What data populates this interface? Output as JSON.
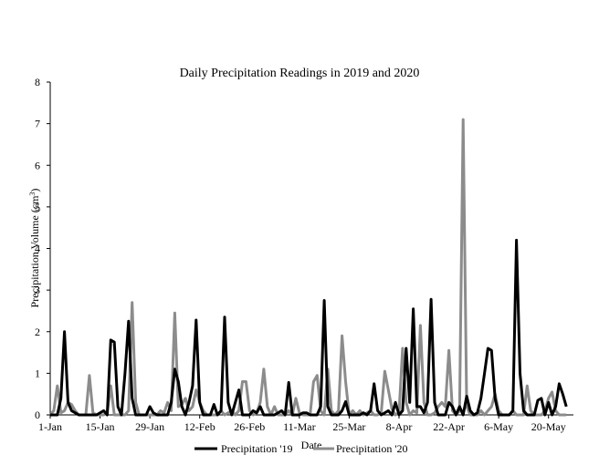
{
  "chart_data": {
    "type": "line",
    "title": "Daily Precipitation Readings in 2019 and 2020",
    "xlabel": "Date",
    "ylabel": "Precipitation Volume (cm^3)",
    "ylim": [
      0,
      8
    ],
    "xlim": [
      1,
      148
    ],
    "yticks": [
      0,
      1,
      2,
      3,
      4,
      5,
      6,
      7,
      8
    ],
    "xticks": [
      {
        "day": 1,
        "label": "1-Jan"
      },
      {
        "day": 15,
        "label": "15-Jan"
      },
      {
        "day": 29,
        "label": "29-Jan"
      },
      {
        "day": 43,
        "label": "12-Feb"
      },
      {
        "day": 57,
        "label": "26-Feb"
      },
      {
        "day": 71,
        "label": "11-Mar"
      },
      {
        "day": 85,
        "label": "25-Mar"
      },
      {
        "day": 99,
        "label": "8-Apr"
      },
      {
        "day": 113,
        "label": "22-Apr"
      },
      {
        "day": 127,
        "label": "6-May"
      },
      {
        "day": 141,
        "label": "20-May"
      }
    ],
    "grid": false,
    "legend_position": "bottom",
    "series": [
      {
        "name": "Precipitation '19",
        "color": "#000000",
        "points": [
          [
            1,
            0
          ],
          [
            3,
            0
          ],
          [
            4,
            0.4
          ],
          [
            5,
            2.0
          ],
          [
            6,
            0.3
          ],
          [
            7,
            0.1
          ],
          [
            9,
            0
          ],
          [
            12,
            0
          ],
          [
            14,
            0
          ],
          [
            16,
            0.1
          ],
          [
            17,
            0
          ],
          [
            18,
            1.8
          ],
          [
            19,
            1.75
          ],
          [
            20,
            0.2
          ],
          [
            21,
            0
          ],
          [
            22,
            1.0
          ],
          [
            23,
            2.25
          ],
          [
            24,
            0.4
          ],
          [
            25,
            0
          ],
          [
            28,
            0
          ],
          [
            29,
            0.2
          ],
          [
            30,
            0.05
          ],
          [
            31,
            0
          ],
          [
            34,
            0
          ],
          [
            35,
            0.3
          ],
          [
            36,
            1.1
          ],
          [
            37,
            0.8
          ],
          [
            38,
            0.2
          ],
          [
            39,
            0
          ],
          [
            40,
            0.3
          ],
          [
            41,
            0.7
          ],
          [
            42,
            2.28
          ],
          [
            43,
            0.3
          ],
          [
            44,
            0
          ],
          [
            46,
            0
          ],
          [
            47,
            0.25
          ],
          [
            48,
            0
          ],
          [
            49,
            0.1
          ],
          [
            50,
            2.35
          ],
          [
            51,
            0.3
          ],
          [
            52,
            0
          ],
          [
            54,
            0.6
          ],
          [
            55,
            0
          ],
          [
            57,
            0
          ],
          [
            58,
            0.1
          ],
          [
            59,
            0.05
          ],
          [
            60,
            0.2
          ],
          [
            61,
            0
          ],
          [
            64,
            0
          ],
          [
            66,
            0.1
          ],
          [
            67,
            0
          ],
          [
            68,
            0.78
          ],
          [
            69,
            0
          ],
          [
            71,
            0
          ],
          [
            72,
            0.05
          ],
          [
            73,
            0.05
          ],
          [
            74,
            0
          ],
          [
            76,
            0
          ],
          [
            77,
            0.2
          ],
          [
            78,
            2.75
          ],
          [
            79,
            0.2
          ],
          [
            80,
            0
          ],
          [
            82,
            0
          ],
          [
            83,
            0.1
          ],
          [
            84,
            0.32
          ],
          [
            85,
            0
          ],
          [
            88,
            0
          ],
          [
            89,
            0.05
          ],
          [
            90,
            0
          ],
          [
            91,
            0.1
          ],
          [
            92,
            0.75
          ],
          [
            93,
            0.1
          ],
          [
            94,
            0
          ],
          [
            96,
            0.1
          ],
          [
            97,
            0
          ],
          [
            98,
            0.3
          ],
          [
            99,
            0
          ],
          [
            100,
            0.1
          ],
          [
            101,
            1.6
          ],
          [
            102,
            0.3
          ],
          [
            103,
            2.55
          ],
          [
            104,
            0.2
          ],
          [
            105,
            0.2
          ],
          [
            106,
            0.05
          ],
          [
            107,
            0.3
          ],
          [
            108,
            2.78
          ],
          [
            109,
            0.3
          ],
          [
            110,
            0
          ],
          [
            112,
            0
          ],
          [
            113,
            0.3
          ],
          [
            114,
            0.2
          ],
          [
            115,
            0
          ],
          [
            116,
            0.2
          ],
          [
            117,
            0
          ],
          [
            118,
            0.45
          ],
          [
            119,
            0.1
          ],
          [
            120,
            0
          ],
          [
            121,
            0.05
          ],
          [
            122,
            0.4
          ],
          [
            123,
            1.0
          ],
          [
            124,
            1.6
          ],
          [
            125,
            1.55
          ],
          [
            126,
            0.4
          ],
          [
            127,
            0
          ],
          [
            130,
            0
          ],
          [
            131,
            0.1
          ],
          [
            132,
            4.2
          ],
          [
            133,
            1.0
          ],
          [
            134,
            0.1
          ],
          [
            135,
            0
          ],
          [
            137,
            0
          ],
          [
            138,
            0.35
          ],
          [
            139,
            0.4
          ],
          [
            140,
            0
          ],
          [
            141,
            0.3
          ],
          [
            142,
            0
          ],
          [
            143,
            0.2
          ],
          [
            144,
            0.75
          ],
          [
            145,
            0.5
          ],
          [
            146,
            0.2
          ]
        ]
      },
      {
        "name": "Precipitation '20",
        "color": "#8c8c8c",
        "points": [
          [
            1,
            0
          ],
          [
            2,
            0.1
          ],
          [
            3,
            0.7
          ],
          [
            4,
            0.05
          ],
          [
            5,
            0.1
          ],
          [
            6,
            0.3
          ],
          [
            7,
            0.25
          ],
          [
            8,
            0.1
          ],
          [
            9,
            0
          ],
          [
            11,
            0
          ],
          [
            12,
            0.95
          ],
          [
            13,
            0.05
          ],
          [
            14,
            0
          ],
          [
            16,
            0
          ],
          [
            17,
            0.05
          ],
          [
            18,
            0.7
          ],
          [
            19,
            0
          ],
          [
            22,
            0
          ],
          [
            23,
            0.1
          ],
          [
            24,
            2.7
          ],
          [
            25,
            0.3
          ],
          [
            26,
            0
          ],
          [
            29,
            0
          ],
          [
            31,
            0
          ],
          [
            32,
            0.1
          ],
          [
            33,
            0.05
          ],
          [
            34,
            0.3
          ],
          [
            35,
            0.1
          ],
          [
            36,
            2.45
          ],
          [
            37,
            0.2
          ],
          [
            38,
            0.25
          ],
          [
            39,
            0.4
          ],
          [
            40,
            0.1
          ],
          [
            41,
            0.2
          ],
          [
            42,
            0.6
          ],
          [
            43,
            0.3
          ],
          [
            44,
            0.1
          ],
          [
            45,
            0
          ],
          [
            48,
            0
          ],
          [
            49,
            0.1
          ],
          [
            50,
            0
          ],
          [
            51,
            0.05
          ],
          [
            52,
            0.1
          ],
          [
            53,
            0
          ],
          [
            54,
            0.1
          ],
          [
            55,
            0.8
          ],
          [
            56,
            0.8
          ],
          [
            57,
            0.1
          ],
          [
            58,
            0
          ],
          [
            59,
            0.05
          ],
          [
            60,
            0.3
          ],
          [
            61,
            1.1
          ],
          [
            62,
            0.2
          ],
          [
            63,
            0
          ],
          [
            64,
            0.2
          ],
          [
            65,
            0
          ],
          [
            67,
            0
          ],
          [
            68,
            0.1
          ],
          [
            69,
            0
          ],
          [
            70,
            0.4
          ],
          [
            71,
            0.05
          ],
          [
            72,
            0
          ],
          [
            74,
            0
          ],
          [
            75,
            0.8
          ],
          [
            76,
            0.95
          ],
          [
            77,
            0.1
          ],
          [
            78,
            0
          ],
          [
            79,
            1.1
          ],
          [
            80,
            0.1
          ],
          [
            81,
            0
          ],
          [
            82,
            0.1
          ],
          [
            83,
            1.9
          ],
          [
            84,
            0.8
          ],
          [
            85,
            0
          ],
          [
            86,
            0.1
          ],
          [
            87,
            0
          ],
          [
            88,
            0.1
          ],
          [
            89,
            0
          ],
          [
            90,
            0.05
          ],
          [
            91,
            0.1
          ],
          [
            92,
            0
          ],
          [
            93,
            0
          ],
          [
            94,
            0.05
          ],
          [
            95,
            1.05
          ],
          [
            96,
            0.6
          ],
          [
            97,
            0.15
          ],
          [
            98,
            0
          ],
          [
            99,
            0.05
          ],
          [
            100,
            1.6
          ],
          [
            101,
            0.3
          ],
          [
            102,
            0
          ],
          [
            103,
            0.1
          ],
          [
            104,
            0.05
          ],
          [
            105,
            2.15
          ],
          [
            106,
            0.3
          ],
          [
            107,
            0
          ],
          [
            108,
            0
          ],
          [
            109,
            0.05
          ],
          [
            110,
            0.2
          ],
          [
            111,
            0.3
          ],
          [
            112,
            0.2
          ],
          [
            113,
            1.55
          ],
          [
            114,
            0.1
          ],
          [
            115,
            0
          ],
          [
            116,
            0.1
          ],
          [
            117,
            7.1
          ],
          [
            118,
            0.2
          ],
          [
            119,
            0
          ],
          [
            121,
            0
          ],
          [
            122,
            0.1
          ],
          [
            123,
            0
          ],
          [
            124,
            0.1
          ],
          [
            125,
            0.2
          ],
          [
            126,
            0.5
          ],
          [
            127,
            0.1
          ],
          [
            128,
            0
          ],
          [
            130,
            0
          ],
          [
            131,
            0.1
          ],
          [
            132,
            0
          ],
          [
            134,
            0
          ],
          [
            135,
            0.7
          ],
          [
            136,
            0.1
          ],
          [
            137,
            0
          ],
          [
            139,
            0
          ],
          [
            140,
            0.1
          ],
          [
            141,
            0.4
          ],
          [
            142,
            0.55
          ],
          [
            143,
            0.1
          ],
          [
            144,
            0
          ],
          [
            146,
            0
          ]
        ]
      }
    ]
  }
}
